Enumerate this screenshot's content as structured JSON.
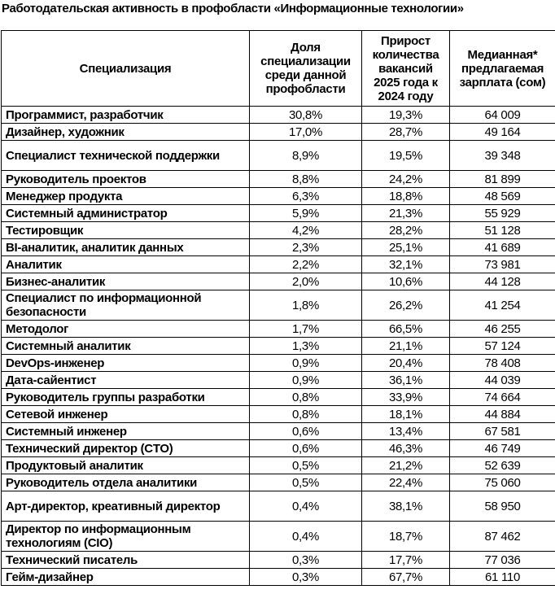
{
  "title": "Работодательская активность в профобласти «Информационные технологии»",
  "table": {
    "headers": [
      "Специализация",
      "Доля специализации среди данной профобласти",
      "Прирост количества вакансий 2025 года к 2024 году",
      "Медианная* предлагаемая зарплата (сом)"
    ],
    "rows": [
      {
        "name": "Программист, разработчик",
        "share": "30,8%",
        "growth": "19,3%",
        "salary": "64 009"
      },
      {
        "name": "Дизайнер, художник",
        "share": "17,0%",
        "growth": "28,7%",
        "salary": "49 164"
      },
      {
        "name": "Специалист технической поддержки",
        "share": "8,9%",
        "growth": "19,5%",
        "salary": "39 348"
      },
      {
        "name": "Руководитель проектов",
        "share": "8,8%",
        "growth": "24,2%",
        "salary": "81 899"
      },
      {
        "name": "Менеджер продукта",
        "share": "6,3%",
        "growth": "18,8%",
        "salary": "48 569"
      },
      {
        "name": "Системный администратор",
        "share": "5,9%",
        "growth": "21,3%",
        "salary": "55 929"
      },
      {
        "name": "Тестировщик",
        "share": "4,2%",
        "growth": "28,2%",
        "salary": "51 128"
      },
      {
        "name": "BI-аналитик, аналитик данных",
        "share": "2,3%",
        "growth": "25,1%",
        "salary": "41 689"
      },
      {
        "name": "Аналитик",
        "share": "2,2%",
        "growth": "32,1%",
        "salary": "73 981"
      },
      {
        "name": "Бизнес-аналитик",
        "share": "2,0%",
        "growth": "10,6%",
        "salary": "44 128"
      },
      {
        "name": "Специалист по информационной безопасности",
        "share": "1,8%",
        "growth": "26,2%",
        "salary": "41 254"
      },
      {
        "name": "Методолог",
        "share": "1,7%",
        "growth": "66,5%",
        "salary": "46 255"
      },
      {
        "name": "Системный аналитик",
        "share": "1,3%",
        "growth": "21,1%",
        "salary": "57 124"
      },
      {
        "name": "DevOps-инженер",
        "share": "0,9%",
        "growth": "20,4%",
        "salary": "78 408"
      },
      {
        "name": "Дата-сайентист",
        "share": "0,9%",
        "growth": "36,1%",
        "salary": "44 039"
      },
      {
        "name": "Руководитель группы разработки",
        "share": "0,8%",
        "growth": "33,9%",
        "salary": "74 664"
      },
      {
        "name": "Сетевой инженер",
        "share": "0,8%",
        "growth": "18,1%",
        "salary": "44 884"
      },
      {
        "name": "Системный инженер",
        "share": "0,6%",
        "growth": "13,4%",
        "salary": "67 581"
      },
      {
        "name": "Технический директор (CTO)",
        "share": "0,6%",
        "growth": "46,3%",
        "salary": "46 749"
      },
      {
        "name": "Продуктовый аналитик",
        "share": "0,5%",
        "growth": "21,2%",
        "salary": "52 639"
      },
      {
        "name": "Руководитель отдела аналитики",
        "share": "0,5%",
        "growth": "22,4%",
        "salary": "75 060"
      },
      {
        "name": "Арт-директор, креативный директор",
        "share": "0,4%",
        "growth": "38,1%",
        "salary": "58 950"
      },
      {
        "name": "Директор по информационным технологиям (CIO)",
        "share": "0,4%",
        "growth": "18,7%",
        "salary": "87 462"
      },
      {
        "name": "Технический писатель",
        "share": "0,3%",
        "growth": "17,7%",
        "salary": "77 036"
      },
      {
        "name": "Гейм-дизайнер",
        "share": "0,3%",
        "growth": "67,7%",
        "salary": "61 110"
      }
    ]
  }
}
